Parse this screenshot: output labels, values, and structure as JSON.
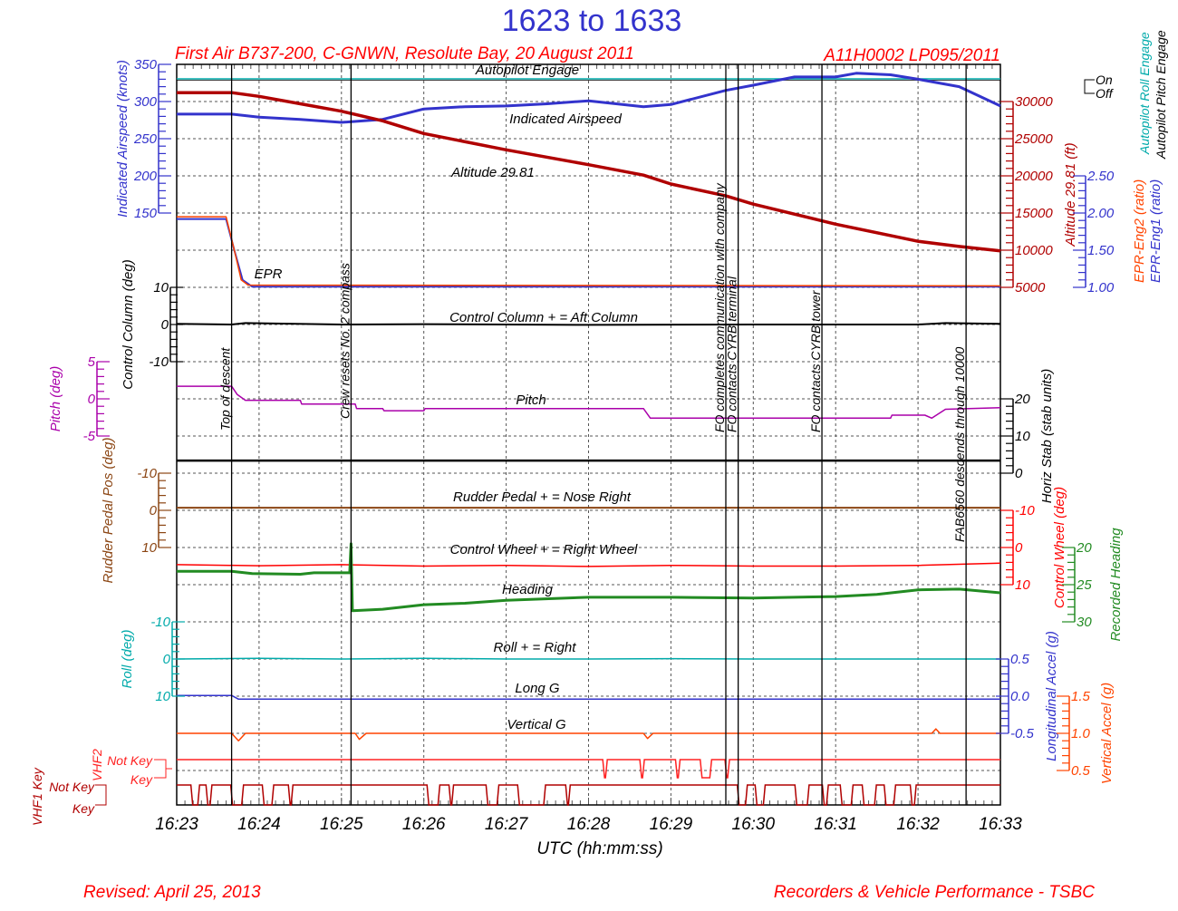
{
  "title": "1623 to 1633",
  "subtitle_left": "First Air B737-200, C-GNWN, Resolute Bay, 20 August 2011",
  "subtitle_right": "A11H0002 LP095/2011",
  "footer_left": "Revised: April 25, 2013",
  "footer_right": "Recorders & Vehicle Performance - TSBC",
  "colors": {
    "title": "#3333cc",
    "red_text": "#ff0000",
    "grid": "#555555"
  },
  "chart_data": {
    "type": "line",
    "xlabel": "UTC (hh:mm:ss)",
    "xlim": [
      "16:23:00",
      "16:33:00"
    ],
    "x_ticks": [
      "16:23",
      "16:24",
      "16:25",
      "16:26",
      "16:27",
      "16:28",
      "16:29",
      "16:30",
      "16:31",
      "16:32",
      "16:33"
    ],
    "grid": true,
    "events": [
      {
        "time": "16:23:40",
        "label": "Top of descent"
      },
      {
        "time": "16:25:07",
        "label": "Crew resets No. 2 compass"
      },
      {
        "time": "16:29:40",
        "label": "FO completes communication with company"
      },
      {
        "time": "16:29:49",
        "label": "FO contacts CYRB terminal"
      },
      {
        "time": "16:30:50",
        "label": "FO contacts CYRB tower"
      },
      {
        "time": "16:32:35",
        "label": "FAB6560 descends through 10000"
      }
    ],
    "axes": {
      "airspeed": {
        "label": "Indicated Airspeed (knots)",
        "color": "#3333cc",
        "ticks": [
          "350",
          "300",
          "250",
          "200",
          "150"
        ],
        "range": [
          150,
          350
        ]
      },
      "altitude": {
        "label": "Altitude 29.81 (ft)",
        "color": "#b00000",
        "ticks": [
          "30000",
          "25000",
          "20000",
          "15000",
          "10000",
          "5000"
        ],
        "range": [
          5000,
          30000
        ]
      },
      "epr": {
        "label_eng2": "EPR-Eng2 (ratio)",
        "label_eng1": "EPR-Eng1 (ratio)",
        "color": "#3333cc",
        "color_eng2": "#ff4400",
        "ticks": [
          "2.50",
          "2.00",
          "1.50",
          "1.00"
        ],
        "range": [
          1.0,
          2.5
        ]
      },
      "autopilot": {
        "label_roll": "Autopilot Roll Engage",
        "label_pitch": "Autopilot Pitch Engage",
        "color_roll": "#00aaaa",
        "color_pitch": "#000000",
        "ticks": [
          "On",
          "Off"
        ]
      },
      "column": {
        "label": "Control Column (deg)",
        "color": "#000000",
        "ticks": [
          "10",
          "0",
          "-10"
        ],
        "range": [
          -10,
          10
        ]
      },
      "pitch": {
        "label": "Pitch (deg)",
        "color": "#aa00aa",
        "ticks": [
          "5",
          "0",
          "-5"
        ],
        "range": [
          -5,
          5
        ]
      },
      "stab": {
        "label": "Horiz Stab (stab units)",
        "color": "#000000",
        "ticks": [
          "20",
          "10",
          "0"
        ],
        "range": [
          0,
          20
        ]
      },
      "rudder": {
        "label": "Rudder Pedal Pos (deg)",
        "color": "#8b4513",
        "ticks": [
          "-10",
          "0",
          "10"
        ],
        "range": [
          -10,
          10
        ]
      },
      "wheel": {
        "label": "Control Wheel (deg)",
        "color": "#ff0000",
        "ticks": [
          "-10",
          "0",
          "10"
        ],
        "range": [
          -10,
          10
        ]
      },
      "heading": {
        "label": "Recorded Heading",
        "color": "#228b22",
        "ticks": [
          "20",
          "25",
          "30"
        ],
        "range": [
          20,
          30
        ]
      },
      "roll": {
        "label": "Roll (deg)",
        "color": "#00aaaa",
        "ticks": [
          "-10",
          "0",
          "10"
        ],
        "range": [
          -10,
          10
        ]
      },
      "longg": {
        "label": "Longitudinal Accel (g)",
        "color": "#3333cc",
        "ticks": [
          "0.5",
          "0.0",
          "-0.5"
        ],
        "range": [
          -0.5,
          0.5
        ]
      },
      "vertg": {
        "label": "Vertical Accel (g)",
        "color": "#ff4400",
        "ticks": [
          "1.5",
          "1.0",
          "0.5"
        ],
        "range": [
          0.5,
          1.5
        ]
      },
      "vhf2": {
        "label": "VHF2",
        "color": "#ff2222",
        "ticks": [
          "Not Key",
          "Key"
        ]
      },
      "vhf1": {
        "label": "VHF1 Key",
        "color": "#b00000",
        "ticks": [
          "Not Key",
          "Key"
        ]
      }
    },
    "series_labels": {
      "autopilot": "Autopilot Engage",
      "airspeed": "Indicated Airspeed",
      "altitude": "Altitude 29.81",
      "epr": "EPR",
      "column": "Control Column + = Aft Column",
      "pitch": "Pitch",
      "rudder": "Rudder Pedal   + = Nose Right",
      "wheel": "Control Wheel   + = Right Wheel",
      "heading": "Heading",
      "roll": "Roll + = Right",
      "longg": "Long G",
      "vertg": "Vertical G"
    },
    "series": [
      {
        "axis": "airspeed",
        "color": "#3333cc",
        "width": 3,
        "points": [
          [
            "16:23:00",
            283
          ],
          [
            "16:23:40",
            283
          ],
          [
            "16:24:00",
            279
          ],
          [
            "16:24:30",
            276
          ],
          [
            "16:25:00",
            272
          ],
          [
            "16:25:30",
            276
          ],
          [
            "16:26:00",
            290
          ],
          [
            "16:26:30",
            293
          ],
          [
            "16:27:00",
            294
          ],
          [
            "16:27:30",
            297
          ],
          [
            "16:28:00",
            301
          ],
          [
            "16:28:40",
            293
          ],
          [
            "16:29:00",
            296
          ],
          [
            "16:29:40",
            315
          ],
          [
            "16:30:00",
            322
          ],
          [
            "16:30:30",
            333
          ],
          [
            "16:31:00",
            333
          ],
          [
            "16:31:15",
            338
          ],
          [
            "16:31:40",
            336
          ],
          [
            "16:32:00",
            330
          ],
          [
            "16:32:30",
            320
          ],
          [
            "16:33:00",
            294
          ]
        ]
      },
      {
        "axis": "altitude",
        "color": "#b00000",
        "width": 3.5,
        "points": [
          [
            "16:23:00",
            31200
          ],
          [
            "16:23:40",
            31200
          ],
          [
            "16:24:00",
            30700
          ],
          [
            "16:24:30",
            29700
          ],
          [
            "16:25:00",
            28700
          ],
          [
            "16:25:30",
            27400
          ],
          [
            "16:26:00",
            25700
          ],
          [
            "16:27:00",
            23500
          ],
          [
            "16:28:00",
            21500
          ],
          [
            "16:28:40",
            20100
          ],
          [
            "16:29:00",
            18900
          ],
          [
            "16:29:40",
            17300
          ],
          [
            "16:30:00",
            16200
          ],
          [
            "16:31:00",
            13500
          ],
          [
            "16:32:00",
            11200
          ],
          [
            "16:32:30",
            10500
          ],
          [
            "16:33:00",
            9900
          ]
        ]
      },
      {
        "axis": "epr",
        "name": "EPR-Eng1",
        "color": "#3333cc",
        "width": 2,
        "points": [
          [
            "16:23:00",
            1.92
          ],
          [
            "16:23:36",
            1.92
          ],
          [
            "16:23:42",
            1.5
          ],
          [
            "16:23:48",
            1.1
          ],
          [
            "16:23:55",
            1.01
          ],
          [
            "16:33:00",
            1.01
          ]
        ]
      },
      {
        "axis": "epr",
        "name": "EPR-Eng2",
        "color": "#ff4400",
        "width": 1.5,
        "points": [
          [
            "16:23:00",
            1.95
          ],
          [
            "16:23:36",
            1.95
          ],
          [
            "16:23:42",
            1.5
          ],
          [
            "16:23:47",
            1.1
          ],
          [
            "16:23:52",
            1.03
          ],
          [
            "16:33:00",
            1.02
          ]
        ]
      },
      {
        "axis": "column",
        "color": "#000000",
        "width": 2,
        "points": [
          [
            "16:23:00",
            0.2
          ],
          [
            "16:23:40",
            0.0
          ],
          [
            "16:23:50",
            0.4
          ],
          [
            "16:25:00",
            0.0
          ],
          [
            "16:26:00",
            0.1
          ],
          [
            "16:28:00",
            -0.1
          ],
          [
            "16:30:00",
            0.0
          ],
          [
            "16:32:00",
            0.0
          ],
          [
            "16:32:20",
            0.4
          ],
          [
            "16:33:00",
            0.2
          ]
        ]
      },
      {
        "axis": "pitch",
        "color": "#aa00aa",
        "width": 1.5,
        "points": [
          [
            "16:23:00",
            1.7
          ],
          [
            "16:23:40",
            1.7
          ],
          [
            "16:23:44",
            0.6
          ],
          [
            "16:23:50",
            -0.2
          ],
          [
            "16:24:30",
            -0.2
          ],
          [
            "16:24:31",
            -0.7
          ],
          [
            "16:25:10",
            -0.7
          ],
          [
            "16:25:11",
            -1.3
          ],
          [
            "16:25:30",
            -1.3
          ],
          [
            "16:25:31",
            -1.6
          ],
          [
            "16:26:00",
            -1.6
          ],
          [
            "16:26:01",
            -1.3
          ],
          [
            "16:28:40",
            -1.3
          ],
          [
            "16:28:45",
            -2.6
          ],
          [
            "16:31:40",
            -2.6
          ],
          [
            "16:31:41",
            -2.2
          ],
          [
            "16:32:05",
            -2.2
          ],
          [
            "16:32:10",
            -2.6
          ],
          [
            "16:32:20",
            -1.4
          ],
          [
            "16:33:00",
            -1.2
          ]
        ]
      },
      {
        "axis": "stab",
        "color": "#000000",
        "width": 2.5,
        "points": [
          [
            "16:23:00",
            3.4
          ],
          [
            "16:33:00",
            3.4
          ]
        ]
      },
      {
        "axis": "rudder",
        "color": "#8b4513",
        "width": 2,
        "points": [
          [
            "16:23:00",
            -0.7
          ],
          [
            "16:33:00",
            -0.7
          ]
        ]
      },
      {
        "axis": "wheel",
        "color": "#ff0000",
        "width": 1.5,
        "points": [
          [
            "16:23:00",
            4.6
          ],
          [
            "16:24:00",
            4.9
          ],
          [
            "16:25:00",
            4.6
          ],
          [
            "16:26:00",
            5.0
          ],
          [
            "16:27:00",
            4.8
          ],
          [
            "16:28:00",
            5.1
          ],
          [
            "16:29:00",
            4.8
          ],
          [
            "16:30:00",
            5.0
          ],
          [
            "16:31:00",
            5.0
          ],
          [
            "16:32:00",
            4.8
          ],
          [
            "16:33:00",
            4.2
          ]
        ]
      },
      {
        "axis": "heading",
        "color": "#228b22",
        "width": 3,
        "points": [
          [
            "16:23:00",
            23.2
          ],
          [
            "16:23:40",
            23.2
          ],
          [
            "16:23:55",
            23.5
          ],
          [
            "16:24:30",
            23.6
          ],
          [
            "16:24:40",
            23.4
          ],
          [
            "16:25:06",
            23.4
          ],
          [
            "16:25:07",
            19.5
          ],
          [
            "16:25:08",
            28.5
          ],
          [
            "16:25:30",
            28.3
          ],
          [
            "16:26:00",
            27.7
          ],
          [
            "16:26:30",
            27.5
          ],
          [
            "16:27:00",
            27.1
          ],
          [
            "16:28:00",
            26.7
          ],
          [
            "16:29:00",
            26.7
          ],
          [
            "16:30:00",
            26.8
          ],
          [
            "16:30:30",
            26.7
          ],
          [
            "16:31:00",
            26.6
          ],
          [
            "16:31:30",
            26.3
          ],
          [
            "16:32:00",
            25.7
          ],
          [
            "16:32:30",
            25.6
          ],
          [
            "16:33:00",
            26.1
          ]
        ]
      },
      {
        "axis": "roll",
        "color": "#00aaaa",
        "width": 1.5,
        "points": [
          [
            "16:23:00",
            0.0
          ],
          [
            "16:24:00",
            -0.2
          ],
          [
            "16:25:00",
            0.0
          ],
          [
            "16:26:00",
            -0.2
          ],
          [
            "16:27:00",
            0.0
          ],
          [
            "16:28:00",
            0.0
          ],
          [
            "16:29:00",
            -0.1
          ],
          [
            "16:30:00",
            0.0
          ],
          [
            "16:31:00",
            0.0
          ],
          [
            "16:32:00",
            0.0
          ],
          [
            "16:33:00",
            0.0
          ]
        ]
      },
      {
        "axis": "longg",
        "color": "#3333cc",
        "width": 1.5,
        "points": [
          [
            "16:23:00",
            0.01
          ],
          [
            "16:23:40",
            0.01
          ],
          [
            "16:23:45",
            -0.04
          ],
          [
            "16:33:00",
            -0.04
          ]
        ]
      },
      {
        "axis": "vertg",
        "color": "#ff4400",
        "width": 1.5,
        "points": [
          [
            "16:23:00",
            1.0
          ],
          [
            "16:23:40",
            1.0
          ],
          [
            "16:23:45",
            0.9
          ],
          [
            "16:23:50",
            1.0
          ],
          [
            "16:25:10",
            1.0
          ],
          [
            "16:25:13",
            0.92
          ],
          [
            "16:25:18",
            1.0
          ],
          [
            "16:28:40",
            1.0
          ],
          [
            "16:28:43",
            0.93
          ],
          [
            "16:28:47",
            1.0
          ],
          [
            "16:32:10",
            1.0
          ],
          [
            "16:32:13",
            1.06
          ],
          [
            "16:32:16",
            1.0
          ],
          [
            "16:33:00",
            1.0
          ]
        ]
      }
    ],
    "autopilot_roll": [
      [
        "16:23:00",
        "On"
      ],
      [
        "16:33:00",
        "On"
      ]
    ],
    "autopilot_pitch": [
      [
        "16:23:00",
        "On"
      ],
      [
        "16:33:00",
        "On"
      ]
    ],
    "vhf2_key_intervals": [
      [
        "16:28:11",
        "16:28:13"
      ],
      [
        "16:28:38",
        "16:28:40"
      ],
      [
        "16:29:04",
        "16:29:06"
      ],
      [
        "16:29:22",
        "16:29:29"
      ],
      [
        "16:29:40",
        "16:29:42"
      ]
    ],
    "vhf1_key_intervals": [
      [
        "16:23:11",
        "16:23:16"
      ],
      [
        "16:23:22",
        "16:23:25"
      ],
      [
        "16:23:40",
        "16:23:48"
      ],
      [
        "16:24:03",
        "16:24:10"
      ],
      [
        "16:24:22",
        "16:24:24"
      ],
      [
        "16:26:03",
        "16:26:11"
      ],
      [
        "16:26:19",
        "16:26:21"
      ],
      [
        "16:26:46",
        "16:26:54"
      ],
      [
        "16:27:09",
        "16:27:28"
      ],
      [
        "16:27:44",
        "16:27:46"
      ],
      [
        "16:29:49",
        "16:29:55"
      ],
      [
        "16:30:02",
        "16:30:08"
      ],
      [
        "16:30:31",
        "16:30:40"
      ],
      [
        "16:30:51",
        "16:30:54"
      ],
      [
        "16:31:04",
        "16:31:12"
      ],
      [
        "16:31:20",
        "16:31:29"
      ],
      [
        "16:31:36",
        "16:31:43"
      ],
      [
        "16:31:55",
        "16:31:58"
      ]
    ]
  }
}
